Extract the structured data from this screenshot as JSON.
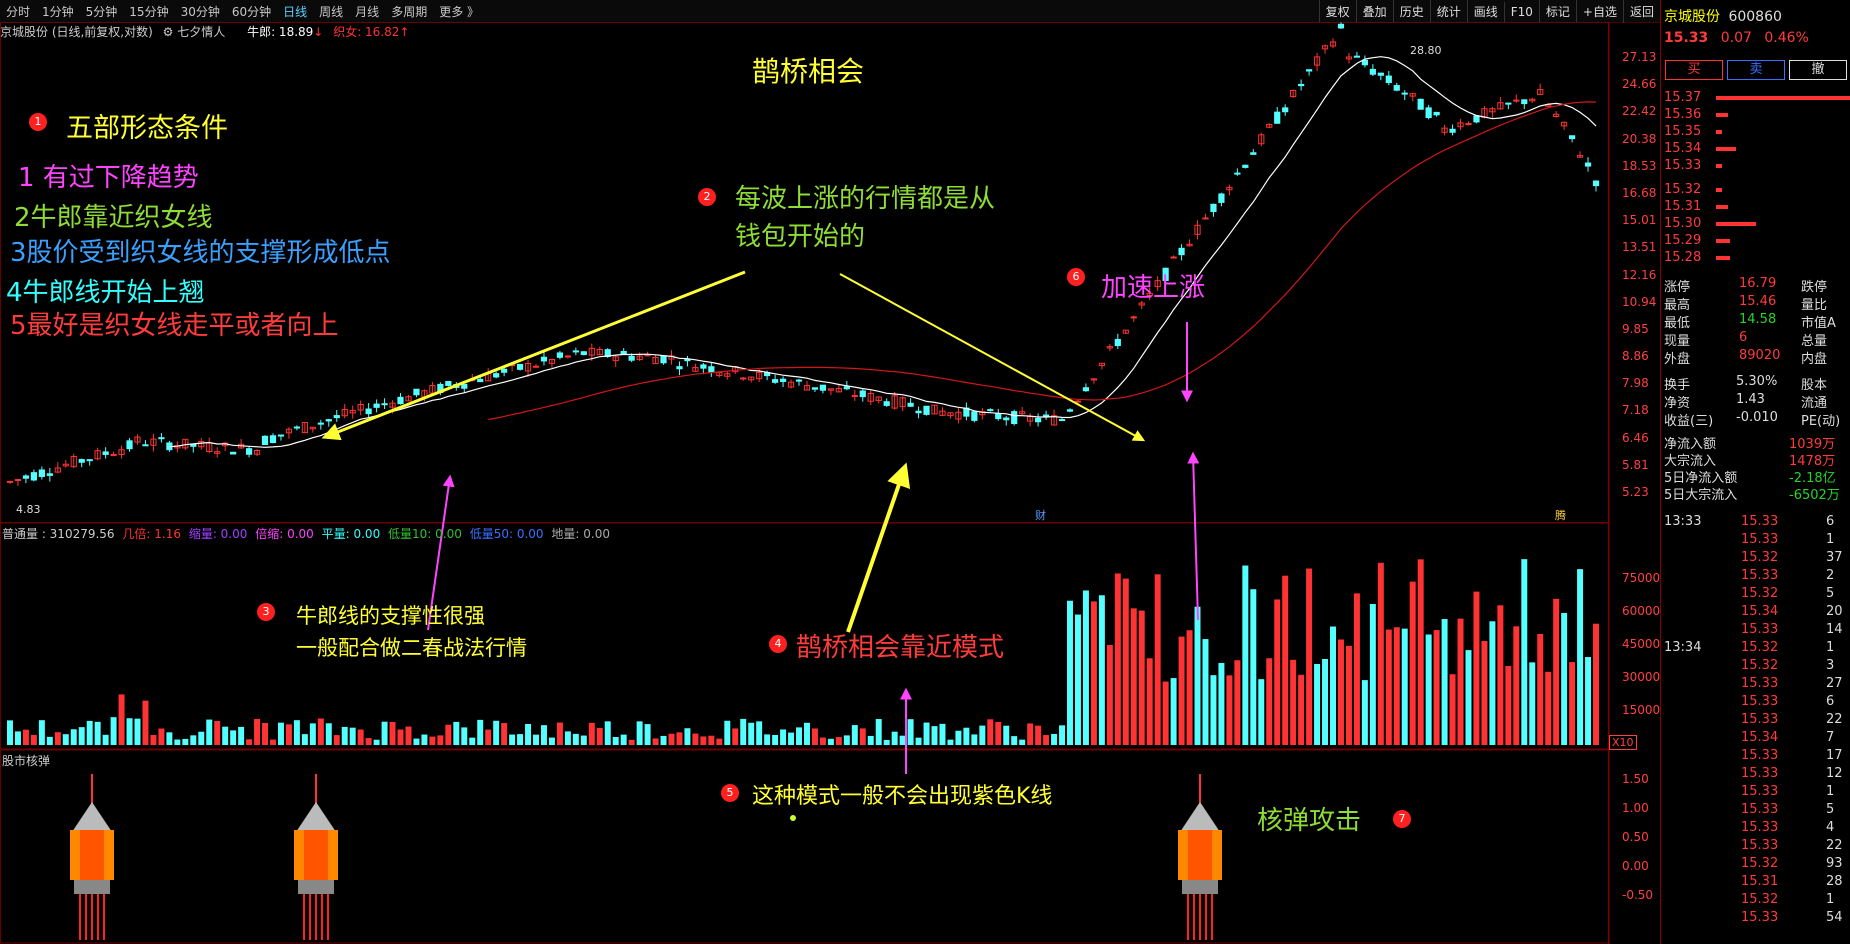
{
  "toolbar": {
    "periods": [
      "分时",
      "1分钟",
      "5分钟",
      "15分钟",
      "30分钟",
      "60分钟",
      "日线",
      "周线",
      "月线",
      "多周期",
      "更多 》"
    ],
    "active_period": "日线",
    "right_buttons": [
      "复权",
      "叠加",
      "历史",
      "统计",
      "画线",
      "F10",
      "标记",
      "+自选",
      "返回"
    ]
  },
  "chart_header": {
    "stock": "京城股份 (日线,前复权,对数)",
    "indicator": "七夕情人",
    "niulang_label": "牛郎: 18.89",
    "zhinv_label": "织女: 16.82"
  },
  "volume_header": {
    "name": "普通量 : 310279.56",
    "items": [
      "几倍: 1.16",
      "缩量: 0.00",
      "倍缩: 0.00",
      "平量: 0.00",
      "低量10: 0.00",
      "低量50: 0.00",
      "地量: 0.00"
    ],
    "multiplier": "X10"
  },
  "nuke_header": {
    "name": "股市核弹"
  },
  "price_axis": [
    "27.13",
    "24.66",
    "22.42",
    "20.38",
    "18.53",
    "16.68",
    "15.01",
    "13.51",
    "12.16",
    "10.94",
    "9.85",
    "8.86",
    "7.98",
    "7.18",
    "6.46",
    "5.81",
    "5.23"
  ],
  "volume_axis": [
    "75000",
    "60000",
    "45000",
    "30000",
    "15000"
  ],
  "nuke_axis": [
    "1.50",
    "1.00",
    "0.50",
    "0.00",
    "-0.50"
  ],
  "markers": {
    "high": "28.80",
    "low": "4.83",
    "cai": "财",
    "teng": "腾"
  },
  "annotations": {
    "title": "鹊桥相会",
    "n1": "1",
    "h1": "五部形态条件",
    "c1": "1 有过下降趋势",
    "c2": "2牛郎靠近织女线",
    "c3": "3股价受到织女线的支撑形成低点",
    "c4": "4牛郎线开始上翘",
    "c5": "5最好是织女线走平或者向上",
    "n2": "2",
    "t2a": "每波上涨的行情都是从",
    "t2b": "钱包开始的",
    "n3": "3",
    "t3a": "牛郎线的支撑性很强",
    "t3b": "一般配合做二春战法行情",
    "n4": "4",
    "t4": "鹊桥相会靠近模式",
    "n5": "5",
    "t5": "这种模式一般不会出现紫色K线",
    "n6": "6",
    "t6": "加速上涨",
    "n7": "7",
    "t7": "核弹攻击"
  },
  "quote": {
    "name": "京城股份",
    "code": "600860",
    "price": "15.33",
    "change": "0.07",
    "pct": "0.46%",
    "buy": "买",
    "sell": "卖",
    "cancel": "撤",
    "sells": [
      [
        "15.37",
        "red",
        140
      ],
      [
        "15.36",
        "red",
        12
      ],
      [
        "15.35",
        "red",
        6
      ],
      [
        "15.34",
        "red",
        20
      ],
      [
        "15.33",
        "red",
        6
      ]
    ],
    "buys": [
      [
        "15.32",
        "red",
        6
      ],
      [
        "15.31",
        "red",
        12
      ],
      [
        "15.30",
        "red",
        40
      ],
      [
        "15.29",
        "red",
        14
      ],
      [
        "15.28",
        "red",
        14
      ]
    ],
    "stats": [
      [
        "涨停",
        "16.79",
        "跌停"
      ],
      [
        "最高",
        "15.46",
        "量比"
      ],
      [
        "最低",
        "14.58",
        "市值A"
      ],
      [
        "现量",
        "6",
        "总量"
      ],
      [
        "外盘",
        "89020",
        "内盘"
      ]
    ],
    "stats2": [
      [
        "换手",
        "5.30%",
        "股本"
      ],
      [
        "净资",
        "1.43",
        "流通"
      ],
      [
        "收益(三)",
        "-0.010",
        "PE(动)"
      ]
    ],
    "flows": [
      [
        "净流入额",
        "1039万"
      ],
      [
        "大宗流入",
        "1478万"
      ],
      [
        "5日净流入额",
        "-2.18亿"
      ],
      [
        "5日大宗流入",
        "-6502万"
      ]
    ],
    "ticks": [
      [
        "13:33",
        "15.33",
        "6"
      ],
      [
        "",
        "15.33",
        "1"
      ],
      [
        "",
        "15.32",
        "37"
      ],
      [
        "",
        "15.33",
        "2"
      ],
      [
        "",
        "15.32",
        "5"
      ],
      [
        "",
        "15.34",
        "20"
      ],
      [
        "",
        "15.33",
        "14"
      ],
      [
        "13:34",
        "15.32",
        "1"
      ],
      [
        "",
        "15.32",
        "3"
      ],
      [
        "",
        "15.33",
        "27"
      ],
      [
        "",
        "15.33",
        "6"
      ],
      [
        "",
        "15.33",
        "22"
      ],
      [
        "",
        "15.34",
        "7"
      ],
      [
        "",
        "15.33",
        "17"
      ],
      [
        "",
        "15.33",
        "12"
      ],
      [
        "",
        "15.33",
        "1"
      ],
      [
        "",
        "15.33",
        "5"
      ],
      [
        "",
        "15.33",
        "4"
      ],
      [
        "",
        "15.33",
        "22"
      ],
      [
        "",
        "15.32",
        "93"
      ],
      [
        "",
        "15.31",
        "28"
      ],
      [
        "",
        "15.32",
        "1"
      ],
      [
        "",
        "15.33",
        "54"
      ]
    ]
  },
  "colors": {
    "up": "#ff3333",
    "down": "#54ffff",
    "ma_white": "#ffffff",
    "ma_red": "#d01818",
    "yellow": "#ffff33",
    "magenta": "#ff44ff",
    "green": "#8edc36",
    "blue": "#3aa0ff",
    "cyan": "#33ffff",
    "red": "#ff3b3b"
  },
  "chart_data": {
    "type": "candlestick",
    "note_axis": "log price axis",
    "ylim": [
      4.83,
      28.8
    ]
  }
}
